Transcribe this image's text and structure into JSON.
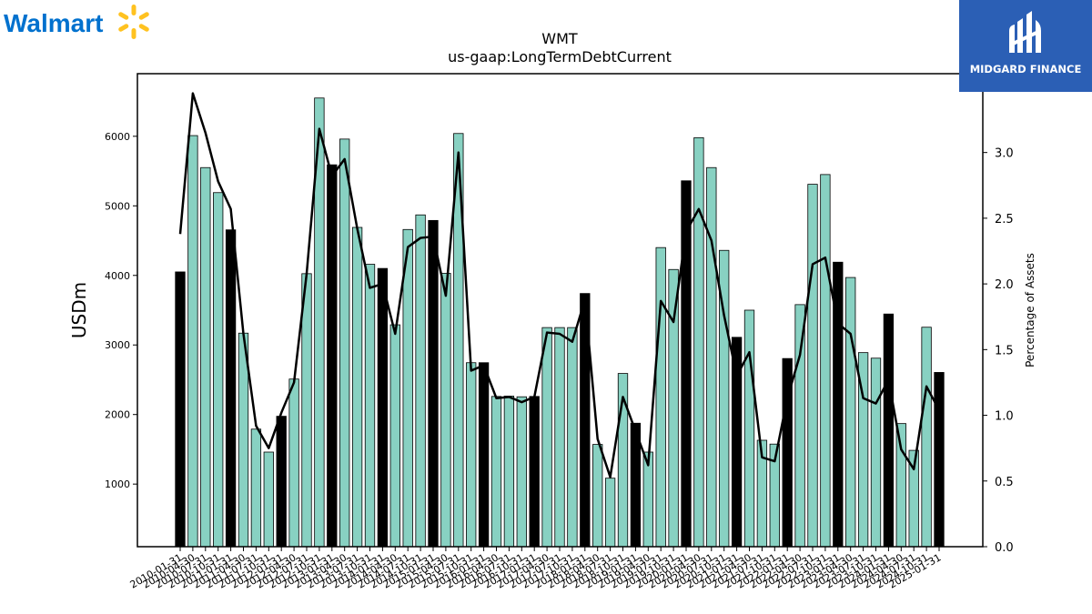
{
  "branding": {
    "left_logo_text": "Walmart",
    "right_logo_text": "MIDGARD FINANCE",
    "walmart_blue": "#0071ce",
    "walmart_yellow": "#ffc220",
    "midgard_blue": "#2b5fb5"
  },
  "chart_data": {
    "type": "bar",
    "title": "WMT",
    "subtitle": "us-gaap:LongTermDebtCurrent",
    "ylabel": "USDm",
    "y2label": "Percentage of Assets",
    "ylim": [
      100,
      6900
    ],
    "y2lim": [
      0,
      3.6
    ],
    "yticks": [
      1000,
      2000,
      3000,
      4000,
      5000,
      6000
    ],
    "y2ticks": [
      0.0,
      0.5,
      1.0,
      1.5,
      2.0,
      2.5,
      3.0
    ],
    "categories": [
      "2010-01-31",
      "2010-04-30",
      "2010-07-31",
      "2010-10-31",
      "2011-01-31",
      "2011-04-30",
      "2011-07-31",
      "2011-10-31",
      "2012-01-31",
      "2012-04-30",
      "2012-07-31",
      "2012-10-31",
      "2013-01-31",
      "2013-04-30",
      "2013-07-31",
      "2013-10-31",
      "2014-01-31",
      "2014-04-30",
      "2014-07-31",
      "2014-10-31",
      "2015-01-31",
      "2015-04-30",
      "2015-07-31",
      "2015-10-31",
      "2016-01-31",
      "2016-04-30",
      "2016-07-31",
      "2016-10-31",
      "2017-01-31",
      "2017-04-30",
      "2017-07-31",
      "2017-10-31",
      "2018-01-31",
      "2018-04-30",
      "2018-07-31",
      "2018-10-31",
      "2019-01-31",
      "2019-04-30",
      "2019-07-31",
      "2019-10-31",
      "2020-01-31",
      "2020-04-30",
      "2020-07-31",
      "2020-10-31",
      "2021-01-31",
      "2021-04-30",
      "2021-07-31",
      "2021-10-31",
      "2022-01-31",
      "2022-04-30",
      "2022-07-31",
      "2022-10-31",
      "2023-01-31",
      "2023-04-30",
      "2023-07-31",
      "2023-10-31",
      "2024-01-31",
      "2024-04-30",
      "2024-07-31",
      "2024-10-31",
      "2025-01-31"
    ],
    "x_tick_labels": [
      "2010-01-31",
      "2010-04-30",
      "2010-07-31",
      "2010-10-31",
      "2011-01-31",
      "2011-04-30",
      "2011-07-31",
      "2011-10-31",
      "2012-01-31",
      "2012-04-30",
      "2012-07-31",
      "2012-10-31",
      "2013-01-31",
      "2013-04-30",
      "2013-07-31",
      "2013-10-31",
      "2014-01-31",
      "2014-04-30",
      "2014-07-31",
      "2014-10-31",
      "2015-01-31",
      "2015-04-30",
      "2015-07-31",
      "2015-10-31",
      "2016-01-31",
      "2016-04-30",
      "2016-07-31",
      "2016-10-31",
      "2017-01-31",
      "2017-04-30",
      "2017-07-31",
      "2017-10-31",
      "2018-01-31",
      "2018-04-30",
      "2018-07-31",
      "2018-10-31",
      "2019-01-31",
      "2019-04-30",
      "2019-07-31",
      "2019-10-31",
      "2020-01-31",
      "2020-04-30",
      "2020-07-31",
      "2020-10-31",
      "2021-01-31",
      "2021-04-30",
      "2021-07-31",
      "2021-10-31",
      "2022-01-31",
      "2022-04-30",
      "2022-07-31",
      "2022-10-31",
      "2023-01-31",
      "2023-04-30",
      "2023-07-31",
      "2023-10-31",
      "2024-01-31",
      "2024-04-30",
      "2024-07-31",
      "2024-10-31",
      "2025-01-31"
    ],
    "values": [
      4050,
      6010,
      5550,
      5190,
      4655,
      3170,
      1790,
      1460,
      1975,
      2510,
      4025,
      6550,
      5590,
      5960,
      4690,
      4160,
      4100,
      3290,
      4660,
      4870,
      4790,
      4030,
      6040,
      2745,
      2745,
      2260,
      2265,
      2255,
      2260,
      3250,
      3250,
      3250,
      3740,
      1570,
      1085,
      2590,
      1875,
      1460,
      4400,
      4085,
      5360,
      5980,
      5550,
      4360,
      3110,
      3500,
      1630,
      1575,
      2805,
      3580,
      5310,
      5450,
      4190,
      3970,
      2890,
      2810,
      3445,
      1870,
      1485,
      3255,
      2605
    ],
    "fiscal_year_end_flags": [
      1,
      0,
      0,
      0,
      1,
      0,
      0,
      0,
      1,
      0,
      0,
      0,
      1,
      0,
      0,
      0,
      1,
      0,
      0,
      0,
      1,
      0,
      0,
      0,
      1,
      0,
      0,
      0,
      1,
      0,
      0,
      0,
      1,
      0,
      0,
      0,
      1,
      0,
      0,
      0,
      1,
      0,
      0,
      0,
      1,
      0,
      0,
      0,
      1,
      0,
      0,
      0,
      1,
      0,
      0,
      0,
      1,
      0,
      0,
      0,
      1
    ],
    "series": [
      {
        "name": "",
        "axis": "right",
        "type": "line",
        "values": [
          2.38,
          3.45,
          3.15,
          2.78,
          2.57,
          1.62,
          0.92,
          0.75,
          1.02,
          1.25,
          2.08,
          3.18,
          2.82,
          2.95,
          2.42,
          1.97,
          2.0,
          1.62,
          2.28,
          2.35,
          2.36,
          1.91,
          3.0,
          1.34,
          1.38,
          1.13,
          1.14,
          1.1,
          1.14,
          1.63,
          1.62,
          1.56,
          1.88,
          0.82,
          0.53,
          1.14,
          0.88,
          0.62,
          1.87,
          1.71,
          2.4,
          2.57,
          2.33,
          1.76,
          1.3,
          1.48,
          0.68,
          0.65,
          1.13,
          1.46,
          2.15,
          2.2,
          1.7,
          1.62,
          1.13,
          1.09,
          1.27,
          0.74,
          0.59,
          1.22,
          1.04
        ]
      }
    ],
    "colors": {
      "quarter_bar": "#88d1c2",
      "fiscal_year_bar": "#000000",
      "line": "#000000"
    },
    "grid": false,
    "legend": "none"
  }
}
